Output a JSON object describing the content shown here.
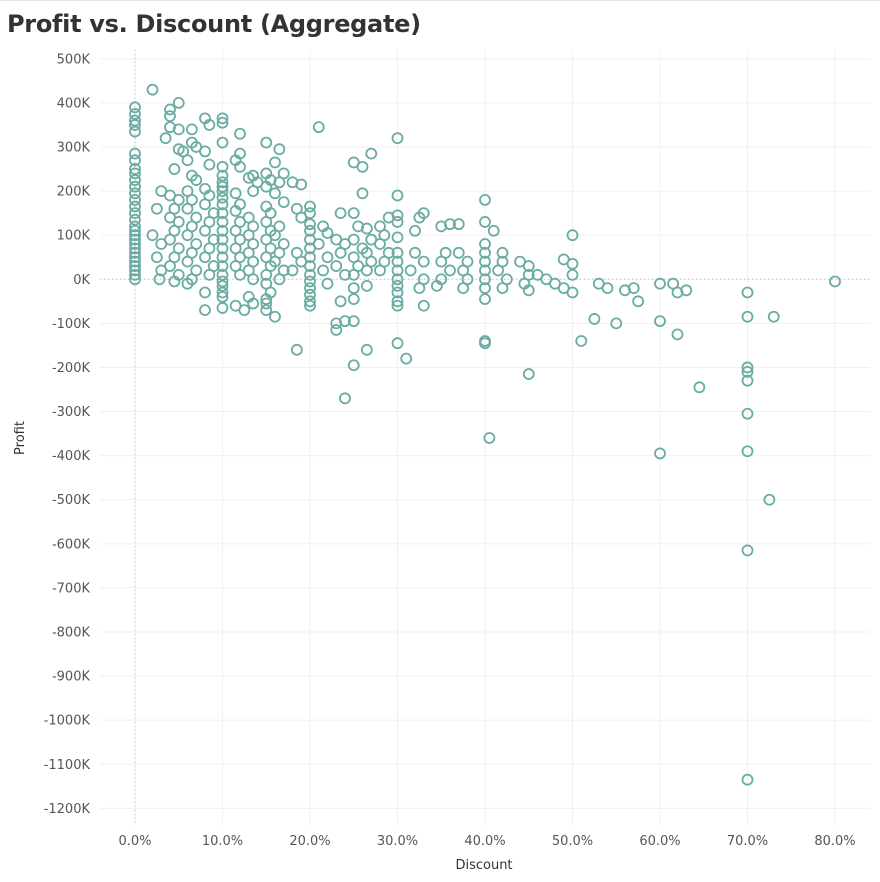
{
  "title": "Profit vs. Discount (Aggregate)",
  "colors": {
    "marker": "#6aaba3",
    "grid": "#f0f0f0",
    "zero_line": "#bfbfbf"
  },
  "chart_data": {
    "type": "scatter",
    "title": "Profit vs. Discount (Aggregate)",
    "xlabel": "Discount",
    "ylabel": "Profit",
    "xlim": [
      -0.04,
      0.84
    ],
    "ylim": [
      -1240000,
      520000
    ],
    "grid": true,
    "marker": "hollow-circle",
    "x_ticks": [
      0,
      0.1,
      0.2,
      0.3,
      0.4,
      0.5,
      0.6,
      0.7,
      0.8
    ],
    "x_tick_labels": [
      "0.0%",
      "10.0%",
      "20.0%",
      "30.0%",
      "40.0%",
      "50.0%",
      "60.0%",
      "70.0%",
      "80.0%"
    ],
    "y_ticks": [
      500000,
      400000,
      300000,
      200000,
      100000,
      0,
      -100000,
      -200000,
      -300000,
      -400000,
      -500000,
      -600000,
      -700000,
      -800000,
      -900000,
      -1000000,
      -1100000,
      -1200000
    ],
    "y_tick_labels": [
      "500K",
      "400K",
      "300K",
      "200K",
      "100K",
      "0K",
      "-100K",
      "-200K",
      "-300K",
      "-400K",
      "-500K",
      "-600K",
      "-700K",
      "-800K",
      "-900K",
      "-1000K",
      "-1100K",
      "-1200K"
    ],
    "points": [
      [
        0.0,
        390000
      ],
      [
        0.0,
        375000
      ],
      [
        0.0,
        360000
      ],
      [
        0.0,
        350000
      ],
      [
        0.0,
        335000
      ],
      [
        0.0,
        285000
      ],
      [
        0.0,
        270000
      ],
      [
        0.0,
        250000
      ],
      [
        0.0,
        240000
      ],
      [
        0.0,
        225000
      ],
      [
        0.0,
        210000
      ],
      [
        0.0,
        195000
      ],
      [
        0.0,
        180000
      ],
      [
        0.0,
        165000
      ],
      [
        0.0,
        150000
      ],
      [
        0.0,
        135000
      ],
      [
        0.0,
        120000
      ],
      [
        0.0,
        110000
      ],
      [
        0.0,
        100000
      ],
      [
        0.0,
        90000
      ],
      [
        0.0,
        80000
      ],
      [
        0.0,
        70000
      ],
      [
        0.0,
        60000
      ],
      [
        0.0,
        50000
      ],
      [
        0.0,
        40000
      ],
      [
        0.0,
        30000
      ],
      [
        0.0,
        20000
      ],
      [
        0.0,
        10000
      ],
      [
        0.0,
        0
      ],
      [
        0.02,
        430000
      ],
      [
        0.03,
        200000
      ],
      [
        0.025,
        160000
      ],
      [
        0.02,
        100000
      ],
      [
        0.03,
        80000
      ],
      [
        0.025,
        50000
      ],
      [
        0.03,
        20000
      ],
      [
        0.028,
        0
      ],
      [
        0.04,
        385000
      ],
      [
        0.04,
        370000
      ],
      [
        0.04,
        345000
      ],
      [
        0.05,
        400000
      ],
      [
        0.05,
        340000
      ],
      [
        0.035,
        320000
      ],
      [
        0.05,
        295000
      ],
      [
        0.055,
        290000
      ],
      [
        0.045,
        250000
      ],
      [
        0.04,
        190000
      ],
      [
        0.05,
        180000
      ],
      [
        0.045,
        160000
      ],
      [
        0.04,
        140000
      ],
      [
        0.05,
        130000
      ],
      [
        0.045,
        110000
      ],
      [
        0.04,
        90000
      ],
      [
        0.05,
        70000
      ],
      [
        0.045,
        50000
      ],
      [
        0.04,
        30000
      ],
      [
        0.05,
        10000
      ],
      [
        0.045,
        -5000
      ],
      [
        0.065,
        340000
      ],
      [
        0.065,
        310000
      ],
      [
        0.07,
        300000
      ],
      [
        0.06,
        270000
      ],
      [
        0.065,
        235000
      ],
      [
        0.07,
        225000
      ],
      [
        0.06,
        200000
      ],
      [
        0.065,
        180000
      ],
      [
        0.06,
        160000
      ],
      [
        0.07,
        140000
      ],
      [
        0.065,
        120000
      ],
      [
        0.06,
        100000
      ],
      [
        0.07,
        80000
      ],
      [
        0.065,
        60000
      ],
      [
        0.06,
        40000
      ],
      [
        0.07,
        20000
      ],
      [
        0.065,
        0
      ],
      [
        0.06,
        -10000
      ],
      [
        0.08,
        365000
      ],
      [
        0.085,
        350000
      ],
      [
        0.08,
        290000
      ],
      [
        0.085,
        260000
      ],
      [
        0.08,
        205000
      ],
      [
        0.085,
        190000
      ],
      [
        0.08,
        170000
      ],
      [
        0.09,
        150000
      ],
      [
        0.085,
        130000
      ],
      [
        0.08,
        110000
      ],
      [
        0.09,
        90000
      ],
      [
        0.085,
        70000
      ],
      [
        0.08,
        50000
      ],
      [
        0.09,
        30000
      ],
      [
        0.085,
        10000
      ],
      [
        0.08,
        -30000
      ],
      [
        0.08,
        -70000
      ],
      [
        0.1,
        365000
      ],
      [
        0.1,
        355000
      ],
      [
        0.1,
        310000
      ],
      [
        0.1,
        255000
      ],
      [
        0.1,
        235000
      ],
      [
        0.1,
        220000
      ],
      [
        0.1,
        210000
      ],
      [
        0.1,
        200000
      ],
      [
        0.1,
        185000
      ],
      [
        0.1,
        170000
      ],
      [
        0.1,
        150000
      ],
      [
        0.1,
        130000
      ],
      [
        0.1,
        110000
      ],
      [
        0.1,
        90000
      ],
      [
        0.1,
        70000
      ],
      [
        0.1,
        50000
      ],
      [
        0.1,
        30000
      ],
      [
        0.1,
        10000
      ],
      [
        0.1,
        -5000
      ],
      [
        0.1,
        -15000
      ],
      [
        0.1,
        -30000
      ],
      [
        0.1,
        -40000
      ],
      [
        0.1,
        -65000
      ],
      [
        0.12,
        330000
      ],
      [
        0.12,
        285000
      ],
      [
        0.115,
        270000
      ],
      [
        0.12,
        255000
      ],
      [
        0.115,
        195000
      ],
      [
        0.12,
        170000
      ],
      [
        0.115,
        155000
      ],
      [
        0.12,
        130000
      ],
      [
        0.115,
        110000
      ],
      [
        0.12,
        90000
      ],
      [
        0.115,
        70000
      ],
      [
        0.12,
        50000
      ],
      [
        0.115,
        30000
      ],
      [
        0.12,
        10000
      ],
      [
        0.115,
        -60000
      ],
      [
        0.125,
        -70000
      ],
      [
        0.135,
        235000
      ],
      [
        0.13,
        230000
      ],
      [
        0.14,
        220000
      ],
      [
        0.135,
        200000
      ],
      [
        0.13,
        140000
      ],
      [
        0.135,
        120000
      ],
      [
        0.13,
        100000
      ],
      [
        0.135,
        80000
      ],
      [
        0.13,
        60000
      ],
      [
        0.135,
        40000
      ],
      [
        0.13,
        20000
      ],
      [
        0.135,
        0
      ],
      [
        0.13,
        -40000
      ],
      [
        0.135,
        -55000
      ],
      [
        0.15,
        310000
      ],
      [
        0.15,
        240000
      ],
      [
        0.155,
        225000
      ],
      [
        0.15,
        210000
      ],
      [
        0.15,
        165000
      ],
      [
        0.155,
        150000
      ],
      [
        0.15,
        130000
      ],
      [
        0.155,
        110000
      ],
      [
        0.15,
        90000
      ],
      [
        0.155,
        70000
      ],
      [
        0.15,
        50000
      ],
      [
        0.155,
        30000
      ],
      [
        0.15,
        10000
      ],
      [
        0.15,
        -10000
      ],
      [
        0.155,
        -30000
      ],
      [
        0.15,
        -45000
      ],
      [
        0.15,
        -55000
      ],
      [
        0.15,
        -70000
      ],
      [
        0.165,
        295000
      ],
      [
        0.16,
        265000
      ],
      [
        0.17,
        240000
      ],
      [
        0.165,
        220000
      ],
      [
        0.16,
        195000
      ],
      [
        0.17,
        175000
      ],
      [
        0.165,
        120000
      ],
      [
        0.16,
        100000
      ],
      [
        0.17,
        80000
      ],
      [
        0.165,
        60000
      ],
      [
        0.16,
        40000
      ],
      [
        0.17,
        20000
      ],
      [
        0.165,
        0
      ],
      [
        0.16,
        -85000
      ],
      [
        0.18,
        220000
      ],
      [
        0.19,
        215000
      ],
      [
        0.185,
        160000
      ],
      [
        0.19,
        140000
      ],
      [
        0.185,
        60000
      ],
      [
        0.19,
        40000
      ],
      [
        0.18,
        20000
      ],
      [
        0.185,
        -160000
      ],
      [
        0.2,
        165000
      ],
      [
        0.2,
        150000
      ],
      [
        0.2,
        125000
      ],
      [
        0.2,
        110000
      ],
      [
        0.2,
        90000
      ],
      [
        0.2,
        70000
      ],
      [
        0.2,
        50000
      ],
      [
        0.2,
        30000
      ],
      [
        0.2,
        10000
      ],
      [
        0.2,
        -5000
      ],
      [
        0.2,
        -20000
      ],
      [
        0.2,
        -35000
      ],
      [
        0.2,
        -50000
      ],
      [
        0.2,
        -60000
      ],
      [
        0.21,
        345000
      ],
      [
        0.215,
        120000
      ],
      [
        0.22,
        105000
      ],
      [
        0.21,
        80000
      ],
      [
        0.22,
        50000
      ],
      [
        0.215,
        20000
      ],
      [
        0.22,
        -10000
      ],
      [
        0.23,
        90000
      ],
      [
        0.235,
        150000
      ],
      [
        0.24,
        80000
      ],
      [
        0.235,
        60000
      ],
      [
        0.23,
        30000
      ],
      [
        0.24,
        10000
      ],
      [
        0.235,
        -50000
      ],
      [
        0.23,
        -100000
      ],
      [
        0.24,
        -95000
      ],
      [
        0.23,
        -115000
      ],
      [
        0.24,
        -270000
      ],
      [
        0.25,
        265000
      ],
      [
        0.26,
        255000
      ],
      [
        0.25,
        150000
      ],
      [
        0.255,
        120000
      ],
      [
        0.25,
        90000
      ],
      [
        0.26,
        70000
      ],
      [
        0.25,
        50000
      ],
      [
        0.255,
        30000
      ],
      [
        0.25,
        10000
      ],
      [
        0.25,
        -20000
      ],
      [
        0.25,
        -45000
      ],
      [
        0.25,
        -95000
      ],
      [
        0.25,
        -195000
      ],
      [
        0.27,
        285000
      ],
      [
        0.26,
        195000
      ],
      [
        0.265,
        115000
      ],
      [
        0.27,
        90000
      ],
      [
        0.265,
        60000
      ],
      [
        0.27,
        40000
      ],
      [
        0.265,
        20000
      ],
      [
        0.265,
        -15000
      ],
      [
        0.265,
        -160000
      ],
      [
        0.28,
        120000
      ],
      [
        0.285,
        100000
      ],
      [
        0.29,
        140000
      ],
      [
        0.28,
        80000
      ],
      [
        0.29,
        60000
      ],
      [
        0.285,
        40000
      ],
      [
        0.28,
        20000
      ],
      [
        0.3,
        320000
      ],
      [
        0.3,
        190000
      ],
      [
        0.3,
        145000
      ],
      [
        0.3,
        130000
      ],
      [
        0.3,
        95000
      ],
      [
        0.3,
        60000
      ],
      [
        0.3,
        40000
      ],
      [
        0.3,
        20000
      ],
      [
        0.3,
        0
      ],
      [
        0.3,
        -15000
      ],
      [
        0.3,
        -30000
      ],
      [
        0.3,
        -50000
      ],
      [
        0.3,
        -60000
      ],
      [
        0.3,
        -145000
      ],
      [
        0.31,
        -180000
      ],
      [
        0.32,
        110000
      ],
      [
        0.325,
        140000
      ],
      [
        0.33,
        150000
      ],
      [
        0.32,
        60000
      ],
      [
        0.33,
        40000
      ],
      [
        0.315,
        20000
      ],
      [
        0.33,
        0
      ],
      [
        0.325,
        -20000
      ],
      [
        0.33,
        -60000
      ],
      [
        0.35,
        120000
      ],
      [
        0.36,
        125000
      ],
      [
        0.355,
        60000
      ],
      [
        0.35,
        40000
      ],
      [
        0.36,
        20000
      ],
      [
        0.35,
        0
      ],
      [
        0.345,
        -15000
      ],
      [
        0.37,
        125000
      ],
      [
        0.37,
        60000
      ],
      [
        0.38,
        40000
      ],
      [
        0.375,
        20000
      ],
      [
        0.38,
        0
      ],
      [
        0.375,
        -20000
      ],
      [
        0.4,
        180000
      ],
      [
        0.4,
        130000
      ],
      [
        0.4,
        80000
      ],
      [
        0.4,
        60000
      ],
      [
        0.4,
        40000
      ],
      [
        0.4,
        20000
      ],
      [
        0.4,
        0
      ],
      [
        0.4,
        -20000
      ],
      [
        0.4,
        -45000
      ],
      [
        0.4,
        -140000
      ],
      [
        0.4,
        -145000
      ],
      [
        0.405,
        -360000
      ],
      [
        0.41,
        110000
      ],
      [
        0.42,
        60000
      ],
      [
        0.42,
        40000
      ],
      [
        0.415,
        20000
      ],
      [
        0.425,
        0
      ],
      [
        0.42,
        -20000
      ],
      [
        0.44,
        40000
      ],
      [
        0.45,
        30000
      ],
      [
        0.45,
        10000
      ],
      [
        0.445,
        -10000
      ],
      [
        0.45,
        -25000
      ],
      [
        0.45,
        -215000
      ],
      [
        0.46,
        10000
      ],
      [
        0.47,
        0
      ],
      [
        0.48,
        -10000
      ],
      [
        0.49,
        45000
      ],
      [
        0.5,
        100000
      ],
      [
        0.5,
        35000
      ],
      [
        0.5,
        10000
      ],
      [
        0.49,
        -20000
      ],
      [
        0.5,
        -30000
      ],
      [
        0.51,
        -140000
      ],
      [
        0.525,
        -90000
      ],
      [
        0.53,
        -10000
      ],
      [
        0.54,
        -20000
      ],
      [
        0.55,
        -100000
      ],
      [
        0.56,
        -25000
      ],
      [
        0.57,
        -20000
      ],
      [
        0.575,
        -50000
      ],
      [
        0.6,
        -10000
      ],
      [
        0.6,
        -95000
      ],
      [
        0.6,
        -395000
      ],
      [
        0.615,
        -10000
      ],
      [
        0.62,
        -30000
      ],
      [
        0.62,
        -125000
      ],
      [
        0.63,
        -25000
      ],
      [
        0.645,
        -245000
      ],
      [
        0.7,
        -30000
      ],
      [
        0.7,
        -85000
      ],
      [
        0.7,
        -200000
      ],
      [
        0.7,
        -210000
      ],
      [
        0.7,
        -230000
      ],
      [
        0.7,
        -305000
      ],
      [
        0.7,
        -390000
      ],
      [
        0.7,
        -615000
      ],
      [
        0.7,
        -1135000
      ],
      [
        0.725,
        -500000
      ],
      [
        0.73,
        -85000
      ],
      [
        0.8,
        -5000
      ]
    ]
  }
}
